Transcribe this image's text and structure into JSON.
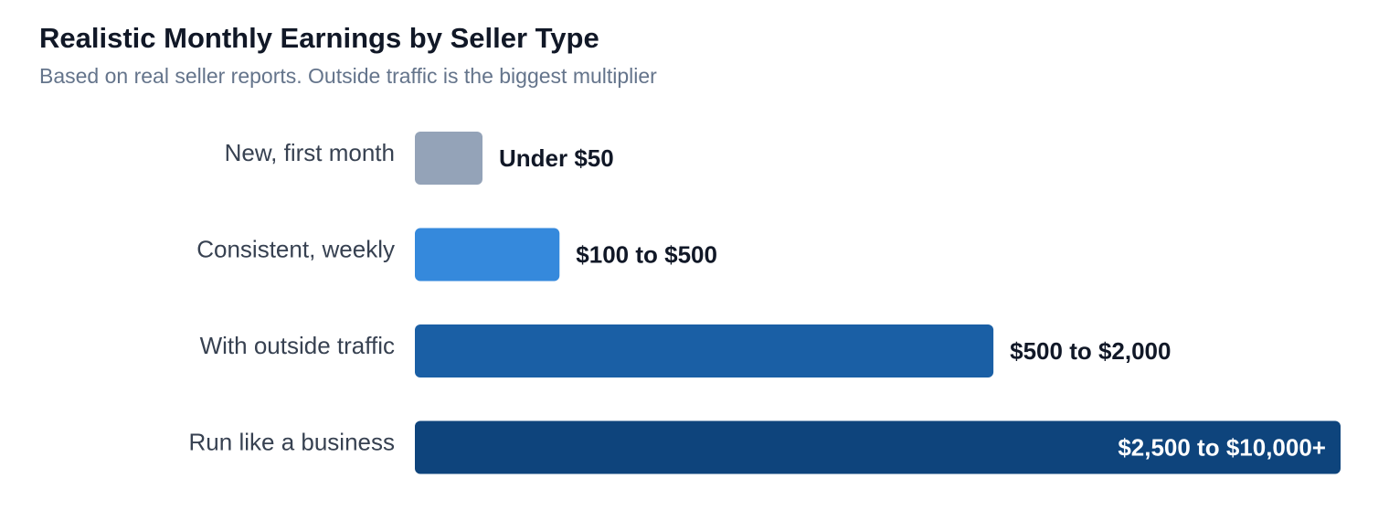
{
  "chart_data": {
    "type": "bar",
    "orientation": "horizontal",
    "title": "Realistic Monthly Earnings by Seller Type",
    "subtitle": "Based on real seller reports. Outside traffic is the biggest multiplier",
    "categories": [
      "New, first month",
      "Consistent, weekly",
      "With outside traffic",
      "Run like a business"
    ],
    "values": [
      50,
      500,
      2000,
      3200
    ],
    "value_labels": [
      "Under $50",
      "$100 to $500",
      "$500 to $2,000",
      "$2,500 to $10,000+"
    ],
    "colors": [
      "#94a3b8",
      "#3589dc",
      "#1a5fa5",
      "#0e447c"
    ],
    "xlim": [
      0,
      3200
    ],
    "grid": false,
    "axes_visible": false,
    "legend": "none"
  }
}
